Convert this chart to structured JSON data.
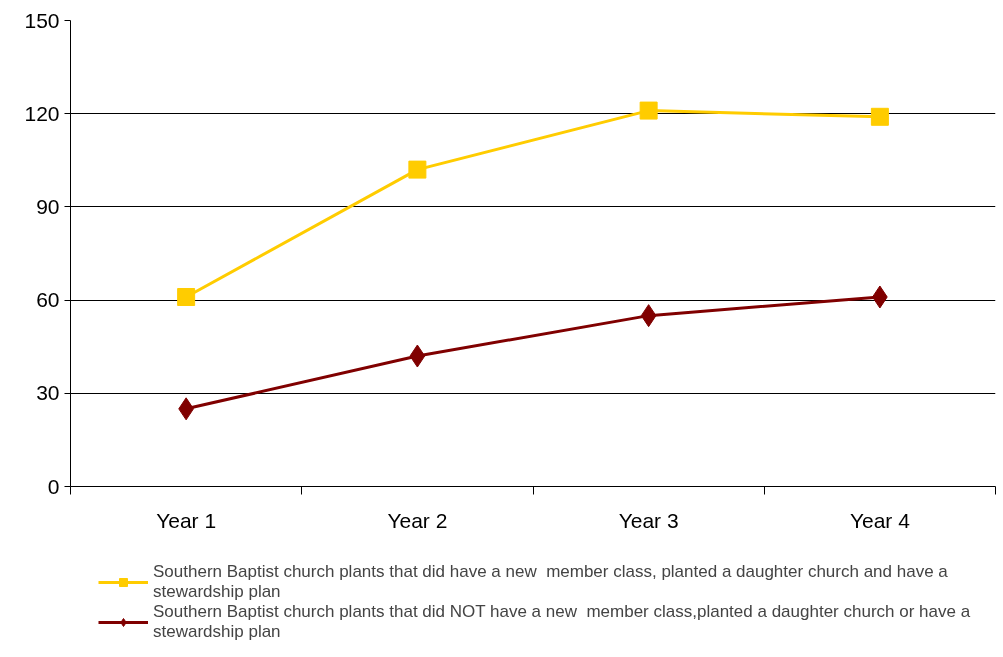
{
  "chart_data": {
    "type": "line",
    "categories": [
      "Year 1",
      "Year 2",
      "Year 3",
      "Year 4"
    ],
    "series": [
      {
        "name": "Southern Baptist church plants that did have a new  member class, planted a daughter church and have a stewardship plan",
        "color": "#ffcc00",
        "marker": "square",
        "values": [
          61,
          102,
          121,
          119
        ]
      },
      {
        "name": "Southern Baptist church plants that did NOT have a new  member class,planted a daughter church or have a stewardship plan",
        "color": "#800000",
        "marker": "diamond",
        "values": [
          25,
          42,
          55,
          61
        ]
      }
    ],
    "ylim": [
      0,
      150
    ],
    "yticks": [
      0,
      30,
      60,
      90,
      120,
      150
    ],
    "grid": "y",
    "legend": "bottom"
  }
}
